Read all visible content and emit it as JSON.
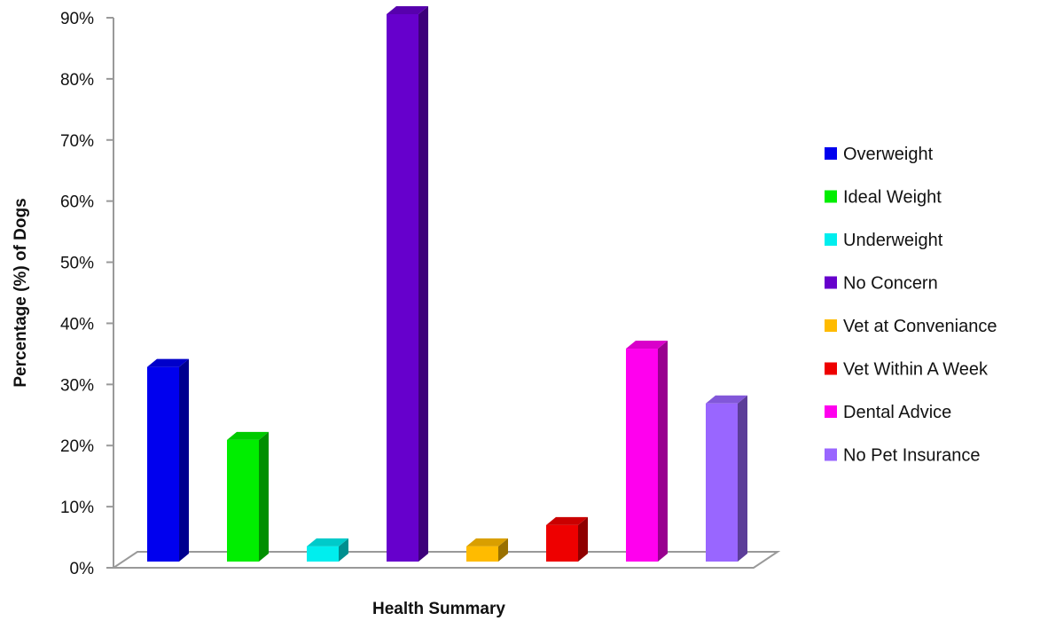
{
  "chart_data": {
    "type": "bar",
    "style": "3d-column",
    "xlabel": "Health Summary",
    "ylabel": "Percentage (%) of Dogs",
    "ylim": [
      0,
      90
    ],
    "yticks": [
      "0%",
      "10%",
      "20%",
      "30%",
      "40%",
      "50%",
      "60%",
      "70%",
      "80%",
      "90%"
    ],
    "legend_position": "right",
    "series": [
      {
        "name": "Overweight",
        "value": 32,
        "color": "#0000ee"
      },
      {
        "name": "Ideal Weight",
        "value": 20,
        "color": "#00ee00"
      },
      {
        "name": "Underweight",
        "value": 2.5,
        "color": "#00eeee"
      },
      {
        "name": "No Concern",
        "value": 90,
        "color": "#6600cc"
      },
      {
        "name": "Vet at Conveniance",
        "value": 2.5,
        "color": "#ffbb00"
      },
      {
        "name": "Vet Within A Week",
        "value": 6,
        "color": "#ee0000"
      },
      {
        "name": "Dental Advice",
        "value": 35,
        "color": "#ff00ee"
      },
      {
        "name": "No Pet Insurance",
        "value": 26,
        "color": "#9966ff"
      }
    ]
  }
}
